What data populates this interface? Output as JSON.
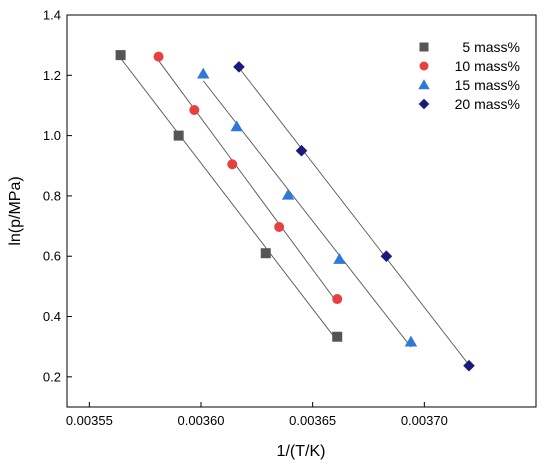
{
  "chart_data": {
    "type": "scatter",
    "xlabel": "1/(T/K)",
    "ylabel": "ln(p/MPa)",
    "xlim": [
      0.00354,
      0.00375
    ],
    "ylim": [
      0.1,
      1.4
    ],
    "xticks": [
      0.00355,
      0.0036,
      0.00365,
      0.0037
    ],
    "xtick_labels": [
      "0.00355",
      "0.00360",
      "0.00365",
      "0.00370"
    ],
    "yticks": [
      0.2,
      0.4,
      0.6,
      0.8,
      1.0,
      1.2,
      1.4
    ],
    "ytick_labels": [
      "0.2",
      "0.4",
      "0.6",
      "0.8",
      "1.0",
      "1.2",
      "1.4"
    ],
    "grid": false,
    "legend_position": "top-right",
    "trend_lines": true,
    "series": [
      {
        "name": "5 mass%",
        "marker": "square",
        "color": "#555555",
        "x": [
          0.003564,
          0.00359,
          0.003629,
          0.003661
        ],
        "y": [
          1.267,
          1.0,
          0.61,
          0.333
        ]
      },
      {
        "name": "10 mass%",
        "marker": "circle",
        "color": "#e84040",
        "x": [
          0.003581,
          0.003597,
          0.003614,
          0.003635,
          0.003661
        ],
        "y": [
          1.262,
          1.085,
          0.905,
          0.697,
          0.458
        ]
      },
      {
        "name": "15 mass%",
        "marker": "triangle",
        "color": "#2e78d8",
        "x": [
          0.003601,
          0.003616,
          0.003639,
          0.003662,
          0.003694
        ],
        "y": [
          1.205,
          1.03,
          0.803,
          0.59,
          0.316
        ]
      },
      {
        "name": "20 mass%",
        "marker": "diamond",
        "color": "#1a1a7a",
        "x": [
          0.003617,
          0.003645,
          0.003683,
          0.00372
        ],
        "y": [
          1.228,
          0.95,
          0.6,
          0.237
        ]
      }
    ]
  }
}
